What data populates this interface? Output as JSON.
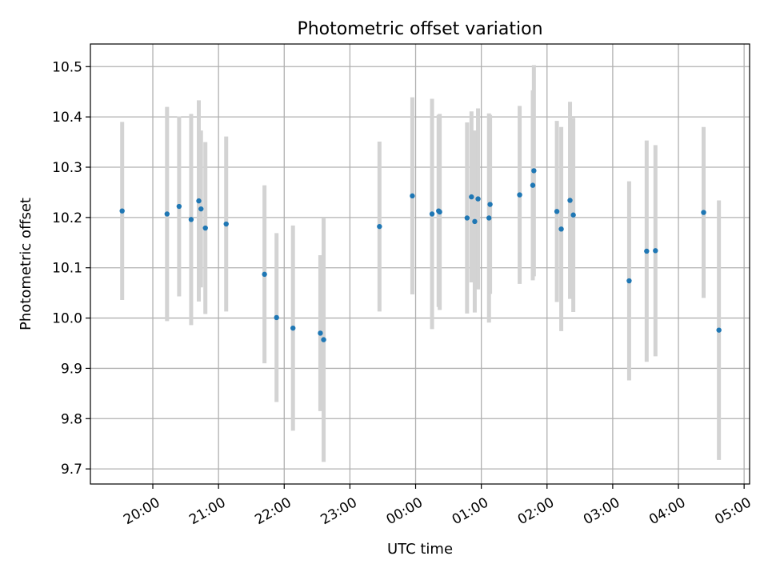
{
  "chart_data": {
    "type": "scatter",
    "title": "Photometric offset variation",
    "xlabel": "UTC time",
    "ylabel": "Photometric offset",
    "x_axis": {
      "kind": "time",
      "range": [
        "19:03",
        "05:05"
      ],
      "ticks": [
        "20:00",
        "21:00",
        "22:00",
        "23:00",
        "00:00",
        "01:00",
        "02:00",
        "03:00",
        "04:00",
        "05:00"
      ]
    },
    "ylim": [
      9.67,
      10.545
    ],
    "yticks": [
      "9.7",
      "9.8",
      "9.9",
      "10.0",
      "10.1",
      "10.2",
      "10.3",
      "10.4",
      "10.5"
    ],
    "grid": true,
    "legend": "none",
    "colors": {
      "point": "#1f77b4",
      "errorbar": "#d3d3d3",
      "grid": "#b0b0b0"
    },
    "series": [
      {
        "points": [
          {
            "x": "19:32",
            "y": 10.213,
            "err": 0.177
          },
          {
            "x": "20:13",
            "y": 10.207,
            "err": 0.213
          },
          {
            "x": "20:24",
            "y": 10.222,
            "err": 0.179
          },
          {
            "x": "20:35",
            "y": 10.196,
            "err": 0.21
          },
          {
            "x": "20:42",
            "y": 10.233,
            "err": 0.2
          },
          {
            "x": "20:44",
            "y": 10.217,
            "err": 0.156
          },
          {
            "x": "20:48",
            "y": 10.179,
            "err": 0.171
          },
          {
            "x": "21:07",
            "y": 10.187,
            "err": 0.174
          },
          {
            "x": "21:42",
            "y": 10.087,
            "err": 0.177
          },
          {
            "x": "21:53",
            "y": 10.001,
            "err": 0.168
          },
          {
            "x": "22:08",
            "y": 9.98,
            "err": 0.204
          },
          {
            "x": "22:33",
            "y": 9.97,
            "err": 0.155
          },
          {
            "x": "22:36",
            "y": 9.957,
            "err": 0.243
          },
          {
            "x": "23:27",
            "y": 10.182,
            "err": 0.169
          },
          {
            "x": "23:57",
            "y": 10.243,
            "err": 0.196
          },
          {
            "x": "00:15",
            "y": 10.207,
            "err": 0.229
          },
          {
            "x": "00:21",
            "y": 10.213,
            "err": 0.191
          },
          {
            "x": "00:22",
            "y": 10.211,
            "err": 0.195
          },
          {
            "x": "00:47",
            "y": 10.199,
            "err": 0.19
          },
          {
            "x": "00:51",
            "y": 10.241,
            "err": 0.17
          },
          {
            "x": "00:54",
            "y": 10.192,
            "err": 0.181
          },
          {
            "x": "00:57",
            "y": 10.237,
            "err": 0.18
          },
          {
            "x": "01:07",
            "y": 10.199,
            "err": 0.208
          },
          {
            "x": "01:08",
            "y": 10.226,
            "err": 0.178
          },
          {
            "x": "01:35",
            "y": 10.245,
            "err": 0.177
          },
          {
            "x": "01:47",
            "y": 10.264,
            "err": 0.189
          },
          {
            "x": "01:48",
            "y": 10.293,
            "err": 0.21
          },
          {
            "x": "02:09",
            "y": 10.212,
            "err": 0.18
          },
          {
            "x": "02:13",
            "y": 10.177,
            "err": 0.203
          },
          {
            "x": "02:21",
            "y": 10.234,
            "err": 0.196
          },
          {
            "x": "02:24",
            "y": 10.205,
            "err": 0.193
          },
          {
            "x": "03:15",
            "y": 10.074,
            "err": 0.198
          },
          {
            "x": "03:31",
            "y": 10.133,
            "err": 0.22
          },
          {
            "x": "03:39",
            "y": 10.134,
            "err": 0.21
          },
          {
            "x": "04:23",
            "y": 10.21,
            "err": 0.17
          },
          {
            "x": "04:37",
            "y": 9.976,
            "err": 0.258
          }
        ]
      }
    ]
  }
}
